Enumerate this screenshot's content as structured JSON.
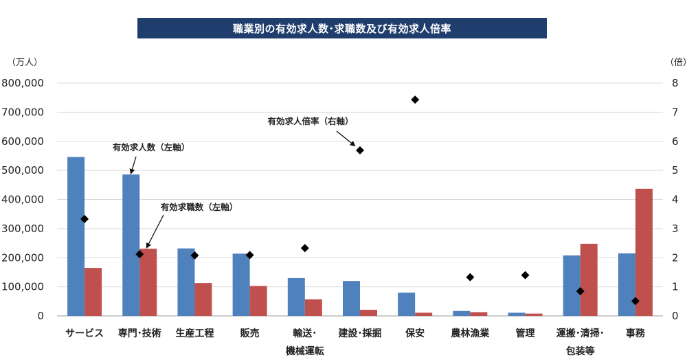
{
  "chart_data": {
    "type": "bar",
    "title": "職業別の有効求人数･求職数及び有効求人倍率",
    "y_left_unit": "（万人）",
    "y_right_unit": "（倍）",
    "ylim_left": [
      0,
      800000
    ],
    "ylim_right": [
      0,
      8
    ],
    "y_left_ticks": [
      "0",
      "100,000",
      "200,000",
      "300,000",
      "400,000",
      "500,000",
      "600,000",
      "700,000",
      "800,000"
    ],
    "y_right_ticks": [
      "0",
      "1",
      "2",
      "3",
      "4",
      "5",
      "6",
      "7",
      "8"
    ],
    "categories": [
      [
        "サービス"
      ],
      [
        "専門･技術"
      ],
      [
        "生産工程"
      ],
      [
        "販売"
      ],
      [
        "輸送･",
        "機械運転"
      ],
      [
        "建設･採掘"
      ],
      [
        "保安"
      ],
      [
        "農林漁業"
      ],
      [
        "管理"
      ],
      [
        "運搬･清掃･",
        "包装等"
      ],
      [
        "事務"
      ]
    ],
    "series": [
      {
        "name": "有効求人数（左軸）",
        "axis": "left",
        "color": "#4f81bd",
        "values": [
          546000,
          486000,
          232000,
          214000,
          130000,
          120000,
          80000,
          17000,
          11000,
          208000,
          215000
        ]
      },
      {
        "name": "有効求職数（左軸）",
        "axis": "left",
        "color": "#c0504d",
        "values": [
          165000,
          231000,
          113000,
          103000,
          57000,
          21000,
          11000,
          13000,
          8000,
          248000,
          437000
        ]
      },
      {
        "name": "有効求人倍率（右軸）",
        "axis": "right",
        "type": "scatter",
        "marker": "diamond",
        "color": "#000000",
        "values": [
          3.33,
          2.12,
          2.08,
          2.09,
          2.33,
          5.69,
          7.43,
          1.33,
          1.4,
          0.85,
          0.51
        ]
      }
    ],
    "annotations": [
      {
        "text": "有効求人数（左軸）",
        "target_series": 0,
        "target_category": 1
      },
      {
        "text": "有効求職数（左軸）",
        "target_series": 1,
        "target_category": 1
      },
      {
        "text": "有効求人倍率（右軸）",
        "target_series": 2,
        "target_category": 5
      }
    ]
  }
}
